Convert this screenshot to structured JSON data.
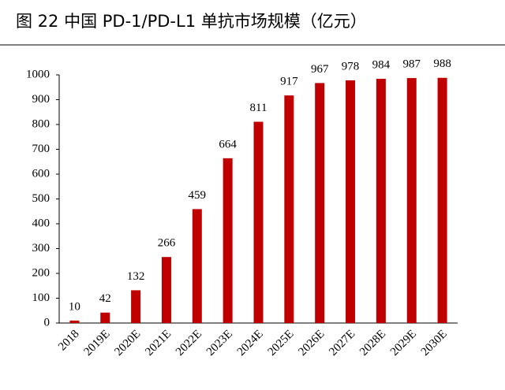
{
  "chart_data": {
    "type": "bar",
    "title": "图 22 中国 PD-1/PD-L1 单抗市场规模（亿元）",
    "categories": [
      "2018",
      "2019E",
      "2020E",
      "2021E",
      "2022E",
      "2023E",
      "2024E",
      "2025E",
      "2026E",
      "2027E",
      "2028E",
      "2029E",
      "2030E"
    ],
    "values": [
      10,
      42,
      132,
      266,
      459,
      664,
      811,
      917,
      967,
      978,
      984,
      987,
      988
    ],
    "color": "#c00000",
    "ylim": [
      0,
      1000
    ],
    "yticks": [
      0,
      100,
      200,
      300,
      400,
      500,
      600,
      700,
      800,
      900,
      1000
    ],
    "grid": false
  }
}
